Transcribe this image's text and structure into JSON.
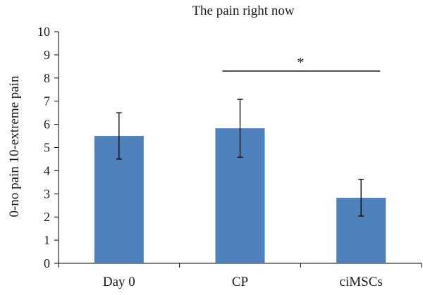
{
  "chart_data": {
    "type": "bar",
    "title": "The pain right now",
    "xlabel": "",
    "ylabel": "0-no pain 10-extreme pain",
    "categories": [
      "Day 0",
      "CP",
      "ciMSCs"
    ],
    "values": [
      5.5,
      5.83,
      2.83
    ],
    "error_low": [
      4.5,
      4.58,
      2.04
    ],
    "error_high": [
      6.5,
      7.08,
      3.63
    ],
    "ylim": [
      0,
      10
    ],
    "yticks": [
      "0",
      "1",
      "2",
      "3",
      "4",
      "5",
      "6",
      "7",
      "8",
      "9",
      "10"
    ],
    "grid": false,
    "bar_color": "#4f81bd",
    "significance": {
      "from": "CP",
      "to": "ciMSCs",
      "y": 8.3,
      "label": "*"
    }
  }
}
